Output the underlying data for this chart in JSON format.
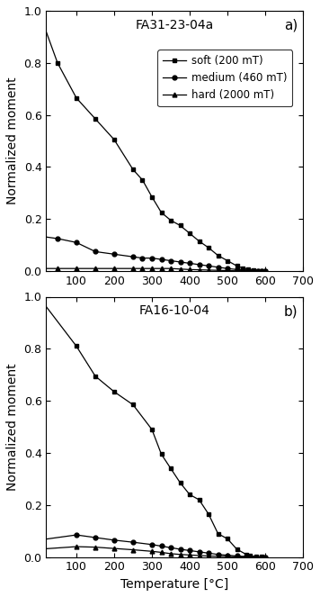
{
  "panel_a": {
    "title": "FA31-23-04a",
    "label": "a)",
    "soft": {
      "x": [
        0,
        50,
        100,
        150,
        200,
        250,
        275,
        300,
        325,
        350,
        375,
        400,
        425,
        450,
        475,
        500,
        525,
        540,
        555,
        570,
        580,
        590,
        600
      ],
      "y": [
        1.0,
        0.8,
        0.665,
        0.585,
        0.505,
        0.39,
        0.35,
        0.285,
        0.225,
        0.195,
        0.175,
        0.145,
        0.115,
        0.09,
        0.06,
        0.04,
        0.02,
        0.012,
        0.008,
        0.004,
        0.002,
        0.001,
        0.0
      ]
    },
    "medium": {
      "x": [
        0,
        50,
        100,
        150,
        200,
        250,
        275,
        300,
        325,
        350,
        375,
        400,
        425,
        450,
        475,
        500,
        525,
        540,
        555,
        570,
        580,
        590,
        600
      ],
      "y": [
        0.135,
        0.125,
        0.11,
        0.075,
        0.065,
        0.055,
        0.05,
        0.05,
        0.045,
        0.04,
        0.035,
        0.03,
        0.025,
        0.02,
        0.015,
        0.01,
        0.006,
        0.004,
        0.003,
        0.002,
        0.001,
        0.0,
        0.0
      ]
    },
    "hard": {
      "x": [
        0,
        50,
        100,
        150,
        200,
        250,
        275,
        300,
        325,
        350,
        375,
        400,
        425,
        450,
        475,
        500,
        525,
        540,
        555,
        570,
        580,
        590,
        600
      ],
      "y": [
        0.01,
        0.01,
        0.01,
        0.01,
        0.01,
        0.01,
        0.01,
        0.01,
        0.01,
        0.01,
        0.008,
        0.006,
        0.005,
        0.004,
        0.003,
        0.002,
        0.001,
        0.0,
        0.0,
        0.0,
        0.0,
        0.0,
        0.0
      ]
    }
  },
  "panel_b": {
    "title": "FA16-10-04",
    "label": "b)",
    "soft": {
      "x": [
        0,
        100,
        150,
        200,
        250,
        300,
        325,
        350,
        375,
        400,
        425,
        450,
        475,
        500,
        525,
        550,
        560,
        575,
        590,
        600
      ],
      "y": [
        1.0,
        0.81,
        0.695,
        0.635,
        0.585,
        0.49,
        0.395,
        0.34,
        0.285,
        0.24,
        0.22,
        0.165,
        0.09,
        0.07,
        0.03,
        0.01,
        0.005,
        0.002,
        0.001,
        0.0
      ]
    },
    "medium": {
      "x": [
        0,
        100,
        150,
        200,
        250,
        300,
        325,
        350,
        375,
        400,
        425,
        450,
        475,
        500,
        525,
        550,
        560,
        575,
        590,
        600
      ],
      "y": [
        0.065,
        0.085,
        0.075,
        0.065,
        0.057,
        0.048,
        0.042,
        0.036,
        0.03,
        0.025,
        0.02,
        0.015,
        0.01,
        0.007,
        0.004,
        0.002,
        0.001,
        0.0,
        0.0,
        0.0
      ]
    },
    "hard": {
      "x": [
        0,
        100,
        150,
        200,
        250,
        300,
        325,
        350,
        375,
        400,
        425,
        450,
        475,
        500,
        525,
        550,
        560,
        575,
        590,
        600
      ],
      "y": [
        0.03,
        0.04,
        0.038,
        0.033,
        0.028,
        0.022,
        0.018,
        0.013,
        0.01,
        0.008,
        0.006,
        0.004,
        0.003,
        0.002,
        0.001,
        0.0,
        0.0,
        0.0,
        0.0,
        0.0
      ]
    }
  },
  "xlim": [
    20,
    700
  ],
  "ylim": [
    0.0,
    1.0
  ],
  "xticks": [
    100,
    200,
    300,
    400,
    500,
    600,
    700
  ],
  "yticks": [
    0.0,
    0.2,
    0.4,
    0.6,
    0.8,
    1.0
  ],
  "xlabel": "Temperature [°C]",
  "ylabel": "Normalized moment",
  "legend_labels": [
    "soft (200 mT)",
    "medium (460 mT)",
    "hard (2000 mT)"
  ],
  "line_color": "#000000",
  "marker_square": "s",
  "marker_circle": "o",
  "marker_triangle": "^",
  "markersize": 3.5,
  "linewidth": 0.9,
  "fontsize_title": 10,
  "fontsize_label": 10,
  "fontsize_tick": 9,
  "fontsize_legend": 8.5,
  "fontsize_panel_label": 11
}
